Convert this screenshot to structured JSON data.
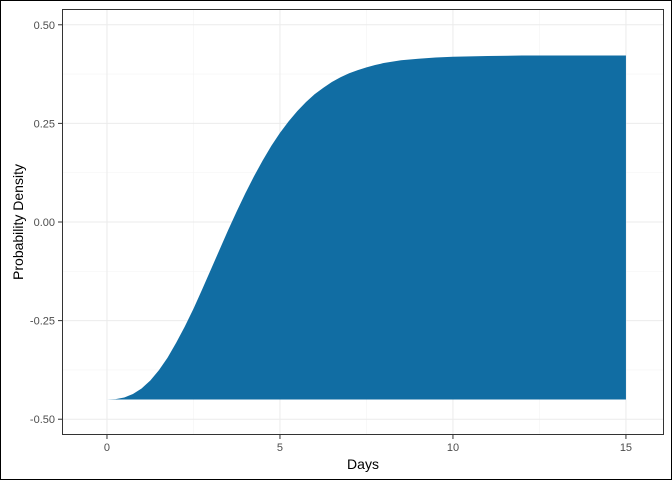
{
  "chart_data": {
    "type": "area",
    "title": "",
    "xlabel": "Days",
    "ylabel": "Probability Density",
    "xlim": [
      -1.3,
      16.1
    ],
    "ylim": [
      -0.54,
      0.54
    ],
    "x_ticks": [
      0,
      5,
      10,
      15
    ],
    "x_tick_labels": [
      "0",
      "5",
      "10",
      "15"
    ],
    "y_ticks": [
      0.5,
      0.25,
      0.0,
      -0.25,
      -0.5
    ],
    "y_tick_labels": [
      "0.50",
      "0.25",
      "0.00",
      "-0.25",
      "-0.50"
    ],
    "grid": true,
    "legend": "none",
    "series": [
      {
        "baseline": -0.45,
        "x": [
          0,
          0.25,
          0.5,
          0.75,
          1,
          1.25,
          1.5,
          1.75,
          2,
          2.25,
          2.5,
          2.75,
          3,
          3.25,
          3.5,
          3.75,
          4,
          4.25,
          4.5,
          4.75,
          5,
          5.25,
          5.5,
          5.75,
          6,
          6.25,
          6.5,
          6.75,
          7,
          7.25,
          7.5,
          7.75,
          8,
          8.5,
          9,
          9.5,
          10,
          11,
          12,
          13,
          14,
          15
        ],
        "y": [
          -0.45,
          -0.449,
          -0.445,
          -0.436,
          -0.422,
          -0.402,
          -0.376,
          -0.344,
          -0.306,
          -0.265,
          -0.22,
          -0.171,
          -0.121,
          -0.071,
          -0.021,
          0.027,
          0.073,
          0.116,
          0.156,
          0.193,
          0.226,
          0.255,
          0.281,
          0.304,
          0.324,
          0.34,
          0.355,
          0.367,
          0.377,
          0.385,
          0.392,
          0.398,
          0.403,
          0.41,
          0.414,
          0.417,
          0.419,
          0.421,
          0.422,
          0.422,
          0.422,
          0.422
        ]
      }
    ],
    "colors": {
      "fill": "#116da3",
      "panel_border": "#333333",
      "grid_major": "#ebebeb",
      "grid_minor": "#f5f5f5",
      "outer_border": "#000000"
    }
  }
}
